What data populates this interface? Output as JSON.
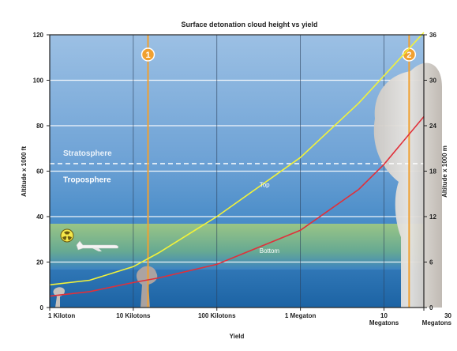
{
  "chart_data": {
    "type": "line",
    "title": "Surface detonation cloud height vs yield",
    "xlabel": "Yield",
    "ylabel_left": "Altitude x 1000 ft",
    "ylabel_right": "Altitude x 1000 m",
    "x_scale": "log",
    "xlim_kilotons": [
      1,
      30000
    ],
    "ylim_left_kft": [
      0,
      120
    ],
    "ylim_right_km": [
      0,
      36
    ],
    "x_ticks": [
      {
        "value_kt": 1,
        "label": "1 Kiloton"
      },
      {
        "value_kt": 10,
        "label": "10 Kilotons"
      },
      {
        "value_kt": 100,
        "label": "100 Kilotons"
      },
      {
        "value_kt": 1000,
        "label": "1 Megaton"
      },
      {
        "value_kt": 10000,
        "label": "10\nMegatons"
      },
      {
        "value_kt": 30000,
        "label": "30\nMegatons"
      }
    ],
    "y_ticks_left": [
      0,
      20,
      40,
      60,
      80,
      100,
      120
    ],
    "y_ticks_right": [
      0,
      6,
      12,
      18,
      24,
      30,
      36
    ],
    "grid": true,
    "series": [
      {
        "name": "Top",
        "color": "#f2f23a",
        "x_kt": [
          1,
          3,
          10,
          20,
          100,
          1000,
          5000,
          10000,
          30000
        ],
        "y_kft": [
          10,
          12,
          18,
          24,
          40,
          66,
          90,
          102,
          121
        ]
      },
      {
        "name": "Bottom",
        "color": "#e0303a",
        "x_kt": [
          1,
          3,
          10,
          20,
          100,
          1000,
          5000,
          10000,
          30000
        ],
        "y_kft": [
          5,
          7,
          11,
          13,
          19,
          34,
          52,
          63,
          84
        ]
      }
    ],
    "layers": [
      {
        "name": "Stratosphere",
        "y_kft": 64
      },
      {
        "name": "Troposphere",
        "y_kft": 60
      }
    ],
    "markers": [
      {
        "label": "1",
        "x_kt": 15
      },
      {
        "label": "2",
        "x_kt": 20000
      }
    ],
    "annotations": [
      {
        "text": "Top",
        "x_kt": 500,
        "y_kft": 53
      },
      {
        "text": "Bottom",
        "x_kt": 500,
        "y_kft": 24
      }
    ],
    "badge_icon": "radiation-icon",
    "colors": {
      "sky_top": "#8fb7dd",
      "sky_bottom": "#1f6fb0",
      "band": "#8fbf6a",
      "marker_line": "#f0a030"
    }
  }
}
